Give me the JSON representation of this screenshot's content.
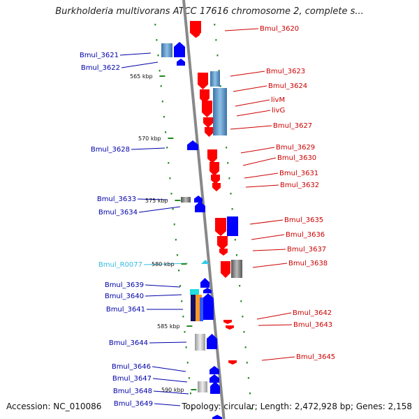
{
  "title": "Burkholderia multivorans ATCC 17616 chromosome 2, complete s...",
  "accession": "Accession: NC_010086",
  "summary": "Topology: circular; Length: 2,472,928 bp; Genes: 2,158",
  "colors": {
    "forward_gene": "#ff0000",
    "reverse_gene": "#0000ff",
    "rna_gene": "#33ccee",
    "left_label": "#0000aa",
    "right_label": "#cc0000",
    "rna_label": "#33bbdd",
    "tick": "#228822",
    "backbone": "#888888"
  },
  "scale_labels": [
    "565 kbp",
    "570 kbp",
    "575 kbp",
    "580 kbp",
    "585 kbp",
    "590 kbp"
  ],
  "left_genes": [
    {
      "name": "Bmul_3621",
      "type": "gene"
    },
    {
      "name": "Bmul_3622",
      "type": "gene"
    },
    {
      "name": "Bmul_3628",
      "type": "gene"
    },
    {
      "name": "Bmul_3633",
      "type": "gene"
    },
    {
      "name": "Bmul_3634",
      "type": "gene"
    },
    {
      "name": "Bmul_R0077",
      "type": "rna"
    },
    {
      "name": "Bmul_3639",
      "type": "gene"
    },
    {
      "name": "Bmul_3640",
      "type": "gene"
    },
    {
      "name": "Bmul_3641",
      "type": "gene"
    },
    {
      "name": "Bmul_3644",
      "type": "gene"
    },
    {
      "name": "Bmul_3646",
      "type": "gene"
    },
    {
      "name": "Bmul_3647",
      "type": "gene"
    },
    {
      "name": "Bmul_3648",
      "type": "gene"
    },
    {
      "name": "Bmul_3649",
      "type": "gene"
    }
  ],
  "right_genes": [
    {
      "name": "Bmul_3620"
    },
    {
      "name": "Bmul_3623"
    },
    {
      "name": "Bmul_3624"
    },
    {
      "name": "livM"
    },
    {
      "name": "livG"
    },
    {
      "name": "Bmul_3627"
    },
    {
      "name": "Bmul_3629"
    },
    {
      "name": "Bmul_3630"
    },
    {
      "name": "Bmul_3631"
    },
    {
      "name": "Bmul_3632"
    },
    {
      "name": "Bmul_3635"
    },
    {
      "name": "Bmul_3636"
    },
    {
      "name": "Bmul_3637"
    },
    {
      "name": "Bmul_3638"
    },
    {
      "name": "Bmul_3642"
    },
    {
      "name": "Bmul_3643"
    },
    {
      "name": "Bmul_3645"
    }
  ]
}
